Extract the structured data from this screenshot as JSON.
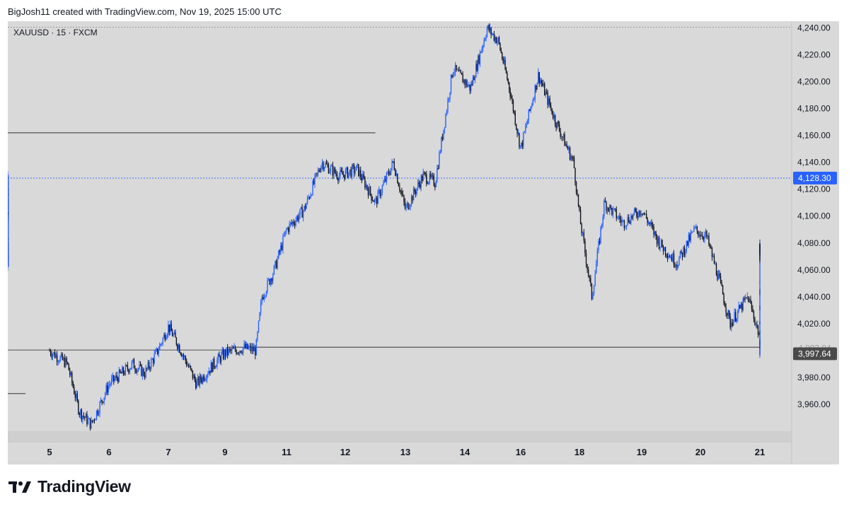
{
  "credit": "BigJosh11 created with TradingView.com, Nov 19, 2025 15:00 UTC",
  "brand": "TradingView",
  "icon": "tradingview-logo-icon",
  "colors": {
    "background": "#d9d9d9",
    "candle_up": "#2962ff",
    "candle_down": "#131722",
    "current_price_label": "#2962ff",
    "zone_fill": "#7b8fc4",
    "dark_label": "#4a4a4a"
  },
  "chart_data": {
    "type": "candlestick",
    "symbol_label": "XAUUSD · 15 · FXCM",
    "ylim": [
      3940,
      4245
    ],
    "y_ticks": [
      3960,
      3980,
      4000,
      4020,
      4040,
      4060,
      4080,
      4100,
      4120,
      4140,
      4160,
      4180,
      4200,
      4220,
      4240
    ],
    "y_tick_labels": [
      "3,960.00",
      "3,980.00",
      "",
      "4,020.00",
      "4,040.00",
      "4,060.00",
      "4,080.00",
      "4,100.00",
      "4,120.00",
      "4,140.00",
      "4,160.00",
      "4,180.00",
      "4,200.00",
      "4,220.00",
      "4,240.00"
    ],
    "x_ticks": [
      "5",
      "6",
      "7",
      "9",
      "11",
      "12",
      "13",
      "14",
      "16",
      "18",
      "19",
      "20",
      "21"
    ],
    "x_tick_index": [
      0,
      1,
      2,
      3,
      4,
      5,
      6,
      7,
      8,
      9,
      10,
      11,
      12
    ],
    "price_path": [
      [
        0,
        4000
      ],
      [
        0.3,
        3990
      ],
      [
        0.5,
        3955
      ],
      [
        0.7,
        3945
      ],
      [
        1,
        3975
      ],
      [
        1.4,
        3990
      ],
      [
        1.6,
        3983
      ],
      [
        1.8,
        3998
      ],
      [
        2,
        4018
      ],
      [
        2.2,
        4002
      ],
      [
        2.5,
        3975
      ],
      [
        2.8,
        3990
      ],
      [
        3.0,
        3998
      ],
      [
        3.3,
        4002
      ],
      [
        3.5,
        4000
      ],
      [
        3.6,
        4040
      ],
      [
        3.8,
        4060
      ],
      [
        4.0,
        4090
      ],
      [
        4.3,
        4105
      ],
      [
        4.6,
        4140
      ],
      [
        4.9,
        4130
      ],
      [
        5.2,
        4135
      ],
      [
        5.5,
        4110
      ],
      [
        5.8,
        4140
      ],
      [
        6.0,
        4105
      ],
      [
        6.3,
        4130
      ],
      [
        6.5,
        4125
      ],
      [
        6.8,
        4210
      ],
      [
        7.1,
        4195
      ],
      [
        7.4,
        4240
      ],
      [
        7.6,
        4230
      ],
      [
        7.8,
        4195
      ],
      [
        8.0,
        4150
      ],
      [
        8.3,
        4205
      ],
      [
        8.6,
        4170
      ],
      [
        8.9,
        4140
      ],
      [
        9.0,
        4100
      ],
      [
        9.2,
        4040
      ],
      [
        9.4,
        4110
      ],
      [
        9.7,
        4095
      ],
      [
        10.0,
        4105
      ],
      [
        10.3,
        4080
      ],
      [
        10.6,
        4065
      ],
      [
        10.9,
        4090
      ],
      [
        11.1,
        4085
      ],
      [
        11.3,
        4055
      ],
      [
        11.5,
        4020
      ],
      [
        11.8,
        4040
      ],
      [
        12.0,
        4010
      ],
      [
        12.2,
        4000
      ],
      [
        12.5,
        4035
      ],
      [
        12.8,
        4080
      ],
      [
        13.1,
        4065
      ],
      [
        13.3,
        4075
      ],
      [
        13.5,
        4072
      ],
      [
        13.8,
        4100
      ],
      [
        14.1,
        4110
      ],
      [
        14.3,
        4119
      ],
      [
        14.4,
        4128.3
      ]
    ],
    "current_price": 4128.3,
    "current_price_label": "4,128.30",
    "low_level": 3997.64,
    "low_level_label": "3,997.64",
    "low_level_label_partial": "4,003.04",
    "high_level": 4240,
    "resistance_level": 4162,
    "support_line": 4002,
    "zone": {
      "from_index": 12.2,
      "to_index": 14.4,
      "top": 4128.3,
      "bottom": 4000
    }
  }
}
